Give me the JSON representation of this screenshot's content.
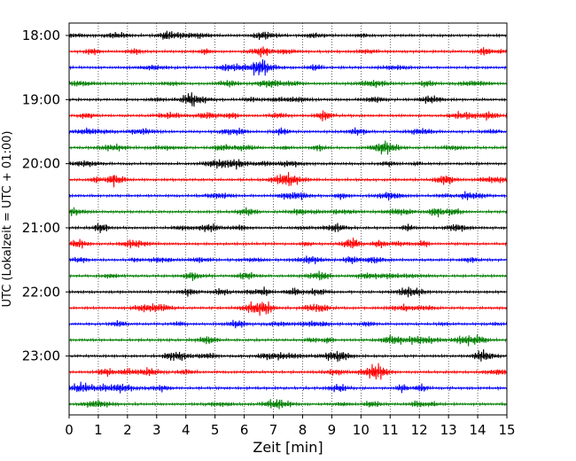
{
  "chart_data": {
    "type": "line",
    "title": "",
    "xlabel": "Zeit  [min]",
    "ylabel": "UTC (Lokalzeit = UTC + 01:00)",
    "xlim": [
      0,
      15
    ],
    "x_ticks": [
      "0",
      "1",
      "2",
      "3",
      "4",
      "5",
      "6",
      "7",
      "8",
      "9",
      "10",
      "11",
      "12",
      "13",
      "14",
      "15"
    ],
    "y_ticks": [
      "18:00",
      "19:00",
      "20:00",
      "21:00",
      "22:00",
      "23:00"
    ],
    "rows_per_hour": 4,
    "row_minutes": 15,
    "start_hour": 18,
    "row_count": 24,
    "colors": [
      "#000000",
      "#ff0000",
      "#0000ff",
      "#007f00"
    ],
    "grid_x": "dotted vertical lines at each minute",
    "grid_y": false
  }
}
